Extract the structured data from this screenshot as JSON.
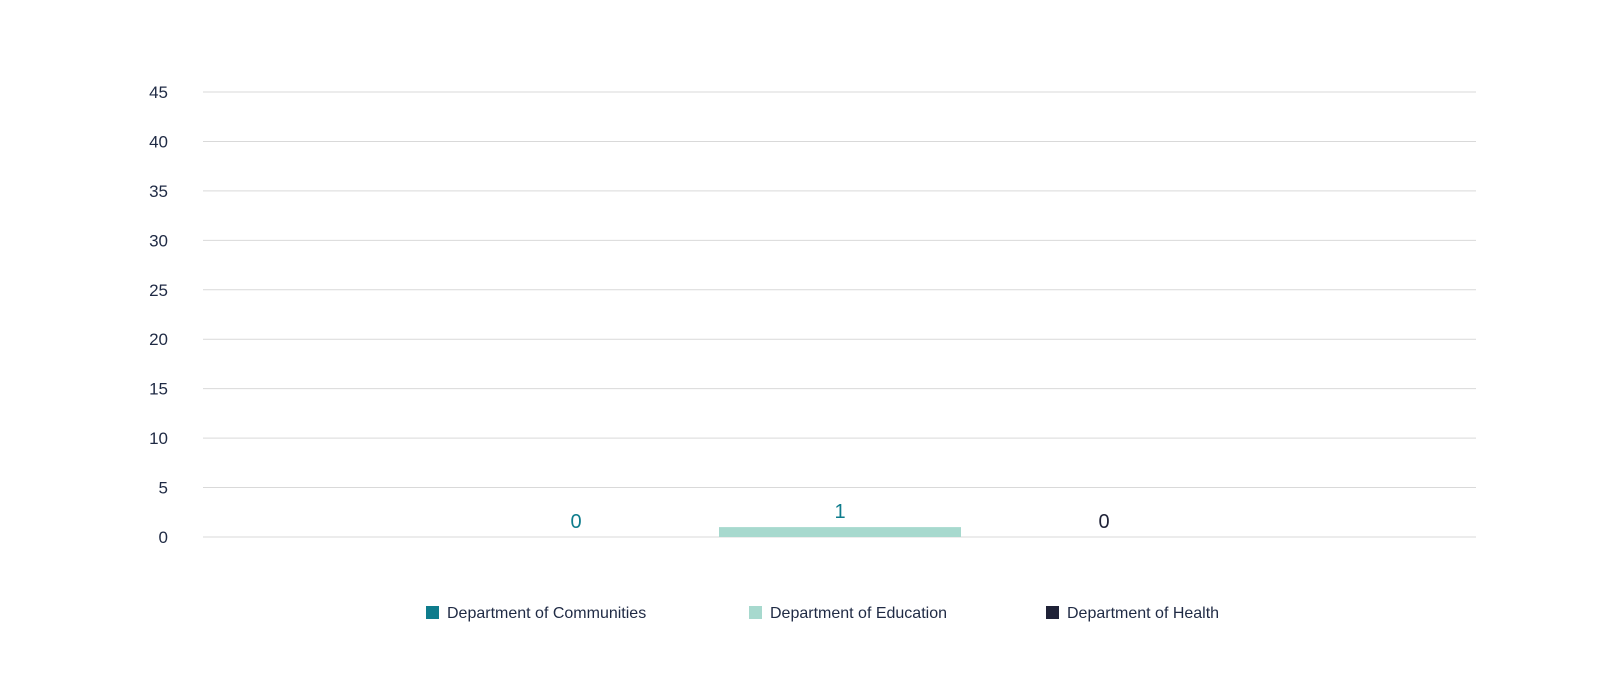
{
  "chart_data": {
    "type": "bar",
    "title": "",
    "xlabel": "",
    "ylabel": "",
    "ylim": [
      0,
      45
    ],
    "y_ticks": [
      0,
      5,
      10,
      15,
      20,
      25,
      30,
      35,
      40,
      45
    ],
    "grid": true,
    "legend_position": "bottom",
    "series": [
      {
        "name": "Department of Communities",
        "value": 0,
        "color": "#0e7c8c"
      },
      {
        "name": "Department of Education",
        "value": 1,
        "color": "#a7d9ce"
      },
      {
        "name": "Department of Health",
        "value": 0,
        "color": "#1f2237"
      }
    ]
  }
}
